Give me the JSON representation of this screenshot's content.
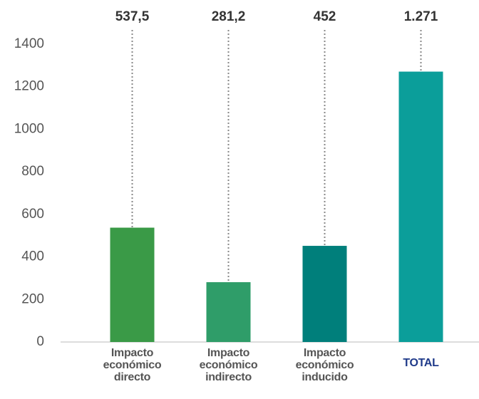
{
  "chart_data": {
    "type": "bar",
    "categories": [
      "Impacto económico directo",
      "Impacto económico indirecto",
      "Impacto económico inducido",
      "TOTAL"
    ],
    "values": [
      537.5,
      281.2,
      452,
      1271
    ],
    "value_labels": [
      "537,5",
      "281,2",
      "452",
      "1.271"
    ],
    "colors": [
      "#3a9a47",
      "#2f9d69",
      "#007f7b",
      "#0b9e9a"
    ],
    "category_colors": [
      "#555555",
      "#555555",
      "#555555",
      "#1f3a8a"
    ],
    "ylim": [
      0,
      1400
    ],
    "yticks": [
      0,
      200,
      400,
      600,
      800,
      1000,
      1200,
      1400
    ],
    "grid": false
  }
}
